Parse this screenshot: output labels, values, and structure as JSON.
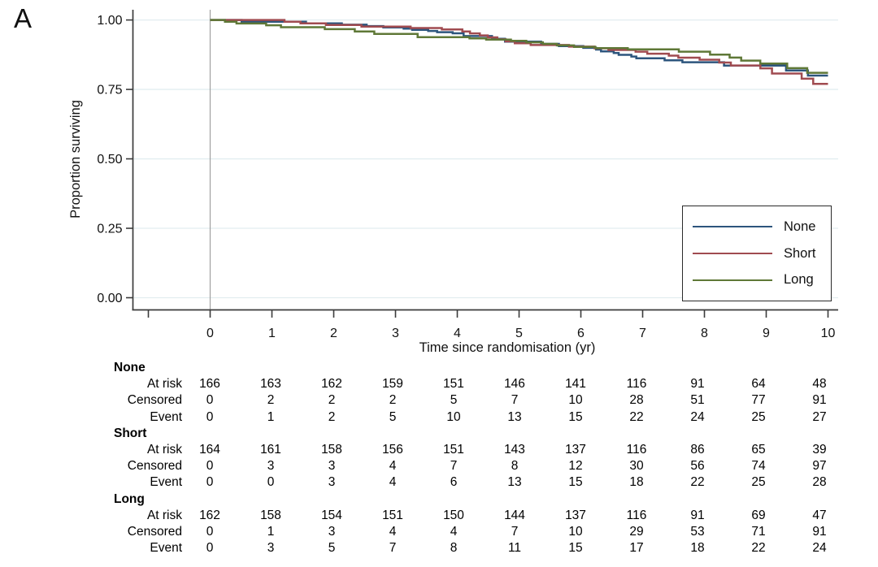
{
  "panel_label": "A",
  "chart_data": {
    "type": "line",
    "subtype": "kaplan-meier-step",
    "title": "",
    "xlabel": "Time since randomisation (yr)",
    "ylabel": "Proportion surviving",
    "xticks": [
      0,
      1,
      2,
      3,
      4,
      5,
      6,
      7,
      8,
      9,
      10
    ],
    "ytick_labels": [
      "0.00",
      "0.25",
      "0.50",
      "0.75",
      "1.00"
    ],
    "ytick_values": [
      0,
      0.25,
      0.5,
      0.75,
      1.0
    ],
    "xlim": [
      -1.25,
      10.15
    ],
    "ylim": [
      0,
      1.04
    ],
    "grid": true,
    "gridline_color": "#e2edf0",
    "reference_line_x": 0,
    "legend_position": "inside-right",
    "x": [
      0,
      1,
      2,
      3,
      4,
      5,
      6,
      7,
      8,
      9,
      10
    ],
    "series": [
      {
        "name": "None",
        "color": "#2d557d",
        "yearly_survival": [
          1,
          0.994,
          0.988,
          0.973,
          0.952,
          0.922,
          0.906,
          0.862,
          0.848,
          0.836,
          0.8
        ],
        "interval_events": [
          1,
          1,
          3,
          5,
          3,
          2,
          7,
          2,
          1,
          2
        ]
      },
      {
        "name": "Short",
        "color": "#a04b50",
        "yearly_survival": [
          1,
          1.0,
          0.982,
          0.976,
          0.966,
          0.916,
          0.904,
          0.886,
          0.857,
          0.826,
          0.77
        ],
        "interval_events": [
          0,
          3,
          1,
          2,
          7,
          2,
          3,
          4,
          3,
          3
        ]
      },
      {
        "name": "Long",
        "color": "#5f7837",
        "yearly_survival": [
          1,
          0.981,
          0.967,
          0.95,
          0.938,
          0.925,
          0.903,
          0.894,
          0.886,
          0.843,
          0.81
        ],
        "interval_events": [
          3,
          2,
          2,
          1,
          3,
          4,
          2,
          1,
          4,
          2
        ]
      }
    ]
  },
  "legend": {
    "entries": [
      {
        "label": "None",
        "color": "#2d557d"
      },
      {
        "label": "Short",
        "color": "#a04b50"
      },
      {
        "label": "Long",
        "color": "#5f7837"
      }
    ]
  },
  "risk_table": {
    "times": [
      0,
      1,
      2,
      3,
      4,
      5,
      6,
      7,
      8,
      9,
      10
    ],
    "row_labels": [
      "At risk",
      "Censored",
      "Event"
    ],
    "groups": [
      {
        "name": "None",
        "rows": [
          [
            166,
            163,
            162,
            159,
            151,
            146,
            141,
            116,
            91,
            64,
            48
          ],
          [
            0,
            2,
            2,
            2,
            5,
            7,
            10,
            28,
            51,
            77,
            91
          ],
          [
            0,
            1,
            2,
            5,
            10,
            13,
            15,
            22,
            24,
            25,
            27
          ]
        ]
      },
      {
        "name": "Short",
        "rows": [
          [
            164,
            161,
            158,
            156,
            151,
            143,
            137,
            116,
            86,
            65,
            39
          ],
          [
            0,
            3,
            3,
            4,
            7,
            8,
            12,
            30,
            56,
            74,
            97
          ],
          [
            0,
            0,
            3,
            4,
            6,
            13,
            15,
            18,
            22,
            25,
            28
          ]
        ]
      },
      {
        "name": "Long",
        "rows": [
          [
            162,
            158,
            154,
            151,
            150,
            144,
            137,
            116,
            91,
            69,
            47
          ],
          [
            0,
            1,
            3,
            4,
            4,
            7,
            10,
            29,
            53,
            71,
            91
          ],
          [
            0,
            3,
            5,
            7,
            8,
            11,
            15,
            17,
            18,
            22,
            24
          ]
        ]
      }
    ]
  }
}
